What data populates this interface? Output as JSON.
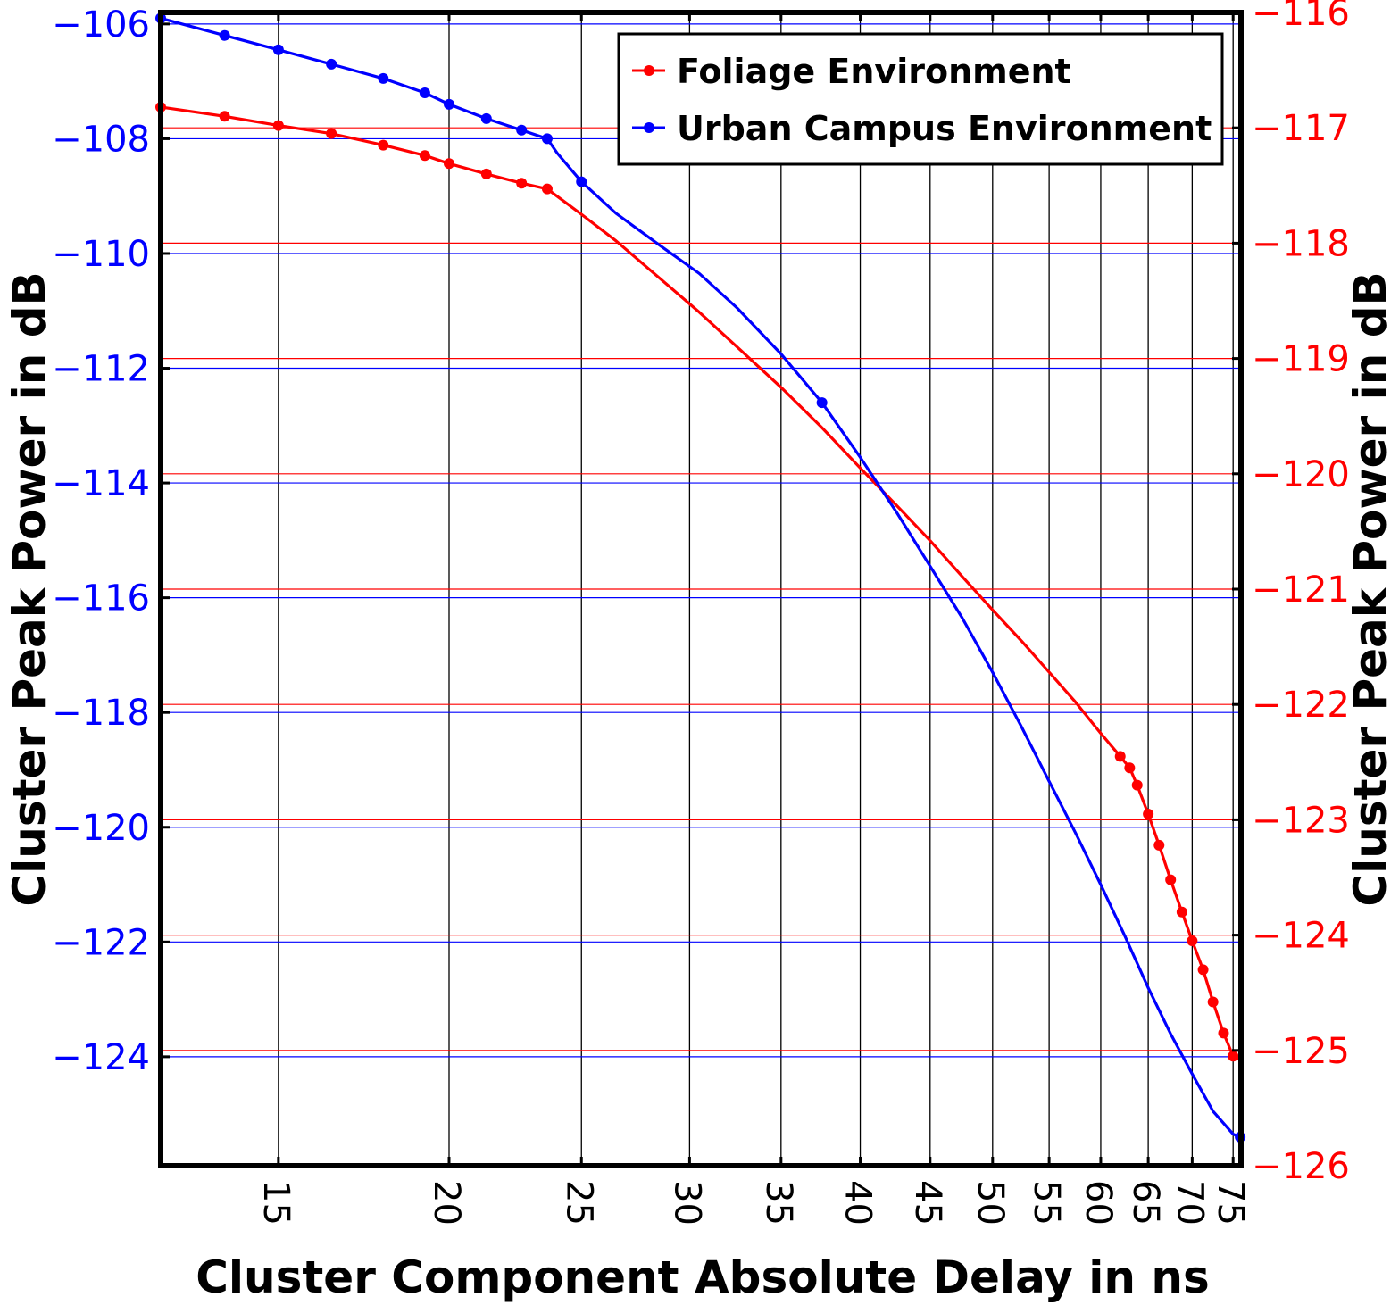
{
  "chart_data": {
    "type": "line",
    "xlabel": "Cluster Component Absolute Delay in ns",
    "ylabel_left": "Cluster Peak Power in dB",
    "ylabel_right": "Cluster Peak Power in dB",
    "x_scale": "log",
    "xlim": [
      12.3,
      76
    ],
    "x_ticks": [
      15,
      20,
      25,
      30,
      35,
      40,
      45,
      50,
      55,
      60,
      65,
      70,
      75
    ],
    "x_tick_labels": [
      "15",
      "20",
      "25",
      "30",
      "35",
      "40",
      "45",
      "50",
      "55",
      "60",
      "65",
      "70",
      "75"
    ],
    "ylim_left": [
      -125.9,
      -105.8
    ],
    "ylim_right": [
      -126,
      -116
    ],
    "y_ticks_left": [
      -106,
      -108,
      -110,
      -112,
      -114,
      -116,
      -118,
      -120,
      -122,
      -124
    ],
    "y_tick_labels_left": [
      "−106",
      "−108",
      "−110",
      "−112",
      "−114",
      "−116",
      "−118",
      "−120",
      "−122",
      "−124"
    ],
    "y_ticks_right": [
      -116,
      -117,
      -118,
      -119,
      -120,
      -121,
      -122,
      -123,
      -124,
      -125,
      -126
    ],
    "y_tick_labels_right": [
      "−116",
      "−117",
      "−118",
      "−119",
      "−120",
      "−121",
      "−122",
      "−123",
      "−124",
      "−125",
      "−126"
    ],
    "grid": true,
    "legend_position": "top-right",
    "series": [
      {
        "name": "Foliage Environment",
        "axis": "right",
        "color": "#ff0000",
        "x": [
          12.3,
          13.7,
          15.0,
          16.4,
          17.9,
          19.2,
          20.0,
          21.3,
          22.6,
          23.6,
          25.0,
          26.5,
          28.5,
          30.5,
          32.5,
          35.0,
          37.5,
          40.0,
          42.5,
          45.0,
          47.5,
          50.0,
          52.5,
          55.0,
          57.5,
          60.0,
          62.0,
          63.0,
          63.8,
          65.0,
          66.2,
          67.5,
          68.8,
          70.0,
          71.3,
          72.5,
          73.8,
          75.0,
          75.9
        ],
        "y": [
          -116.82,
          -116.9,
          -116.98,
          -117.05,
          -117.15,
          -117.24,
          -117.31,
          -117.4,
          -117.48,
          -117.53,
          -117.75,
          -117.98,
          -118.3,
          -118.6,
          -118.9,
          -119.25,
          -119.6,
          -119.95,
          -120.27,
          -120.58,
          -120.89,
          -121.18,
          -121.45,
          -121.72,
          -121.98,
          -122.25,
          -122.45,
          -122.55,
          -122.7,
          -122.95,
          -123.22,
          -123.52,
          -123.8,
          -124.05,
          -124.3,
          -124.58,
          -124.85,
          -125.05,
          -125.08
        ],
        "markers_x": [
          12.3,
          13.7,
          15.0,
          16.4,
          17.9,
          19.2,
          20.0,
          21.3,
          22.6,
          23.6,
          62.0,
          63.0,
          63.8,
          65.0,
          66.2,
          67.5,
          68.8,
          70.0,
          71.3,
          72.5,
          73.8,
          75.0
        ],
        "markers_y": [
          -116.82,
          -116.9,
          -116.98,
          -117.05,
          -117.15,
          -117.24,
          -117.31,
          -117.4,
          -117.48,
          -117.53,
          -122.45,
          -122.55,
          -122.7,
          -122.95,
          -123.22,
          -123.52,
          -123.8,
          -124.05,
          -124.3,
          -124.58,
          -124.85,
          -125.05
        ]
      },
      {
        "name": "Urban Campus Environment",
        "axis": "left",
        "color": "#0000ff",
        "x": [
          12.3,
          13.7,
          15.0,
          16.4,
          17.9,
          19.2,
          20.0,
          21.3,
          22.6,
          23.6,
          24.0,
          25.0,
          26.5,
          28.5,
          30.5,
          32.5,
          35.0,
          37.5,
          40.0,
          42.5,
          45.0,
          47.5,
          50.0,
          52.5,
          55.0,
          57.5,
          60.0,
          62.5,
          65.0,
          67.5,
          70.0,
          72.5,
          75.0,
          75.9
        ],
        "y": [
          -105.9,
          -106.2,
          -106.45,
          -106.7,
          -106.95,
          -107.2,
          -107.4,
          -107.65,
          -107.85,
          -108.0,
          -108.25,
          -108.75,
          -109.3,
          -109.85,
          -110.35,
          -110.95,
          -111.75,
          -112.6,
          -113.55,
          -114.5,
          -115.45,
          -116.35,
          -117.3,
          -118.25,
          -119.2,
          -120.1,
          -121.0,
          -121.9,
          -122.8,
          -123.6,
          -124.3,
          -124.95,
          -125.35,
          -125.4
        ],
        "markers_x": [
          12.3,
          13.7,
          15.0,
          16.4,
          17.9,
          19.2,
          20.0,
          21.3,
          22.6,
          23.6,
          25.0,
          37.5,
          75.9
        ],
        "markers_y": [
          -105.9,
          -106.2,
          -106.45,
          -106.7,
          -106.95,
          -107.2,
          -107.4,
          -107.65,
          -107.85,
          -108.0,
          -108.75,
          -112.6,
          -125.4
        ]
      }
    ]
  }
}
